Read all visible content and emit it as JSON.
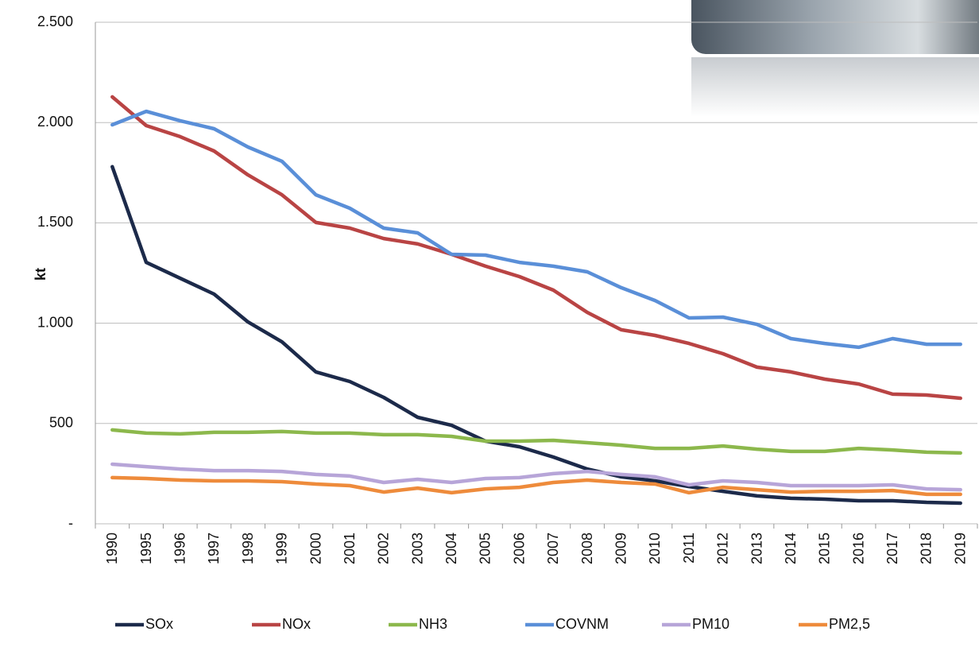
{
  "chart_data": {
    "type": "line",
    "y_label": "kt",
    "categories": [
      "1990",
      "1995",
      "1996",
      "1997",
      "1998",
      "1999",
      "2000",
      "2001",
      "2002",
      "2003",
      "2004",
      "2005",
      "2006",
      "2007",
      "2008",
      "2009",
      "2010",
      "2011",
      "2012",
      "2013",
      "2014",
      "2015",
      "2016",
      "2017",
      "2018",
      "2019"
    ],
    "ylim": [
      0,
      2500
    ],
    "yticks": [
      {
        "value": 0,
        "label": "-"
      },
      500,
      {
        "value": 1000,
        "label": "1.000"
      },
      {
        "value": 1500,
        "label": "1.500"
      },
      {
        "value": 2000,
        "label": "2.000"
      },
      {
        "value": 2500,
        "label": "2.500"
      }
    ],
    "grid": true,
    "legend": "bottom",
    "series": [
      {
        "name": "SOx",
        "color": "#1c2a4a",
        "values": [
          1780,
          1303,
          1224,
          1145,
          1006,
          907,
          757,
          709,
          630,
          531,
          491,
          412,
          384,
          333,
          273,
          234,
          214,
          186,
          162,
          139,
          127,
          123,
          115,
          115,
          107,
          103
        ]
      },
      {
        "name": "NOx",
        "color": "#b94444",
        "values": [
          2128,
          1985,
          1930,
          1858,
          1739,
          1640,
          1502,
          1474,
          1422,
          1395,
          1343,
          1284,
          1232,
          1165,
          1054,
          967,
          939,
          899,
          848,
          781,
          757,
          721,
          697,
          646,
          642,
          626
        ]
      },
      {
        "name": "NH3",
        "color": "#8cb84c",
        "values": [
          468,
          452,
          448,
          456,
          456,
          460,
          452,
          452,
          444,
          444,
          436,
          412,
          412,
          416,
          404,
          392,
          376,
          376,
          388,
          372,
          361,
          361,
          376,
          368,
          357,
          353
        ]
      },
      {
        "name": "COVNM",
        "color": "#5a8fd8",
        "values": [
          1989,
          2056,
          2009,
          1969,
          1878,
          1807,
          1640,
          1573,
          1474,
          1450,
          1343,
          1339,
          1303,
          1284,
          1256,
          1177,
          1113,
          1026,
          1030,
          994,
          923,
          899,
          880,
          923,
          895,
          895
        ]
      },
      {
        "name": "PM10",
        "color": "#b7a5d8",
        "values": [
          297,
          285,
          273,
          265,
          265,
          261,
          246,
          238,
          206,
          222,
          206,
          226,
          230,
          250,
          261,
          246,
          234,
          194,
          214,
          206,
          190,
          190,
          190,
          194,
          174,
          170
        ]
      },
      {
        "name": "PM2,5",
        "color": "#ee8b3b",
        "values": [
          230,
          226,
          218,
          214,
          214,
          210,
          198,
          190,
          158,
          178,
          155,
          174,
          182,
          206,
          218,
          206,
          198,
          155,
          182,
          170,
          158,
          162,
          162,
          166,
          147,
          147
        ]
      }
    ]
  }
}
